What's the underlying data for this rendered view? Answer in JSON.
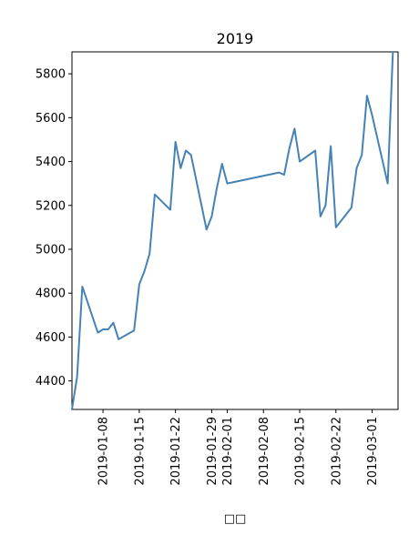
{
  "chart_data": {
    "type": "line",
    "title": "2019",
    "xlabel": "□□",
    "ylabel": "",
    "ylim": [
      4270,
      5900
    ],
    "xlim": [
      "2019-01-02",
      "2019-03-06"
    ],
    "grid": false,
    "legend": "none",
    "line_color": "#4682b4",
    "y_ticks": [
      4400,
      4600,
      4800,
      5000,
      5200,
      5400,
      5600,
      5800
    ],
    "y_tick_labels": [
      "4400",
      "4600",
      "4800",
      "5000",
      "5200",
      "5400",
      "5600",
      "5800"
    ],
    "x_ticks": [
      "2019-01-08",
      "2019-01-15",
      "2019-01-22",
      "2019-01-29",
      "2019-02-01",
      "2019-02-08",
      "2019-02-15",
      "2019-02-22",
      "2019-03-01"
    ],
    "x_tick_labels": [
      "2019-01-08",
      "2019-01-15",
      "2019-01-22",
      "2019-01-29",
      "2019-02-01",
      "2019-02-08",
      "2019-02-15",
      "2019-02-22",
      "2019-03-01"
    ],
    "series": [
      {
        "x": [
          "2019-01-02",
          "2019-01-03",
          "2019-01-04",
          "2019-01-07",
          "2019-01-08",
          "2019-01-09",
          "2019-01-10",
          "2019-01-11",
          "2019-01-14",
          "2019-01-15",
          "2019-01-16",
          "2019-01-17",
          "2019-01-18",
          "2019-01-21",
          "2019-01-22",
          "2019-01-23",
          "2019-01-24",
          "2019-01-25",
          "2019-01-28",
          "2019-01-29",
          "2019-01-30",
          "2019-01-31",
          "2019-02-01",
          "2019-02-11",
          "2019-02-12",
          "2019-02-13",
          "2019-02-14",
          "2019-02-15",
          "2019-02-18",
          "2019-02-19",
          "2019-02-20",
          "2019-02-21",
          "2019-02-22",
          "2019-02-25",
          "2019-02-26",
          "2019-02-27",
          "2019-02-28",
          "2019-03-01",
          "2019-03-04",
          "2019-03-05"
        ],
        "values": [
          4270,
          4420,
          4830,
          4620,
          4635,
          4635,
          4665,
          4590,
          4630,
          4840,
          4900,
          4980,
          5250,
          5180,
          5490,
          5370,
          5450,
          5430,
          5090,
          5150,
          5280,
          5390,
          5300,
          5350,
          5340,
          5460,
          5550,
          5400,
          5450,
          5150,
          5200,
          5470,
          5100,
          5190,
          5370,
          5430,
          5700,
          5610,
          5300,
          5900
        ]
      }
    ]
  }
}
